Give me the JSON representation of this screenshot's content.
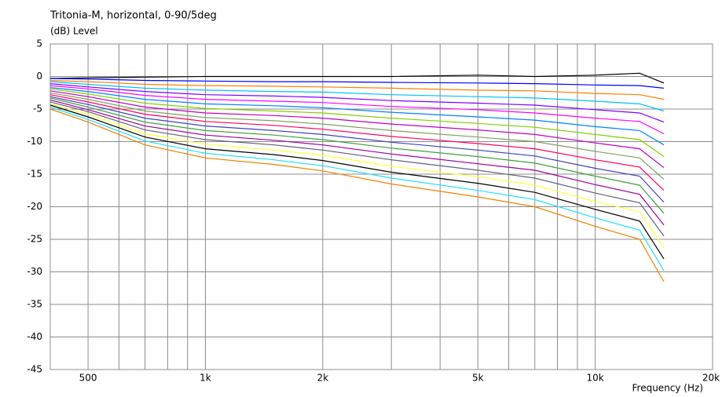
{
  "chart_data": {
    "type": "line",
    "title": "Tritonia-M, horizontal, 0-90/5deg",
    "y_label": "(dB)  Level",
    "x_label": "Frequency  (Hz)",
    "x": [
      400,
      500,
      700,
      1000,
      1500,
      2000,
      3000,
      5000,
      7000,
      10000,
      13000,
      15000
    ],
    "xlim": [
      400,
      20000
    ],
    "x_log": true,
    "xticks": [
      500,
      {
        "value": 1000,
        "label": "1k"
      },
      {
        "value": 2000,
        "label": "2k"
      },
      {
        "value": 5000,
        "label": "5k"
      },
      {
        "value": 10000,
        "label": "10k"
      },
      {
        "value": 20000,
        "label": "20k"
      }
    ],
    "xminor": [
      600,
      700,
      800,
      900,
      3000,
      4000,
      6000,
      7000,
      8000,
      9000
    ],
    "ylim": [
      -45,
      5
    ],
    "yticks": [
      5,
      0,
      -5,
      -10,
      -15,
      -20,
      -25,
      -30,
      -35,
      -40,
      -45
    ],
    "grid": true,
    "series": [
      {
        "color": "#000000",
        "values": [
          -0.3,
          -0.2,
          -0.1,
          0,
          0,
          0,
          0,
          0.2,
          0,
          0.2,
          0.5,
          -1
        ]
      },
      {
        "color": "#0000ff",
        "values": [
          -0.3,
          -0.4,
          -0.6,
          -0.7,
          -0.8,
          -0.8,
          -0.9,
          -1,
          -1.1,
          -1.3,
          -1.4,
          -1.8
        ]
      },
      {
        "color": "#ff8000",
        "values": [
          -0.6,
          -0.8,
          -1.2,
          -1.4,
          -1.5,
          -1.6,
          -1.8,
          -2.1,
          -2.2,
          -2.6,
          -2.8,
          -3.5
        ]
      },
      {
        "color": "#00c0ff",
        "values": [
          -0.8,
          -1.2,
          -1.8,
          -2.1,
          -2.3,
          -2.4,
          -2.8,
          -3.1,
          -3.3,
          -3.8,
          -4.2,
          -5.3
        ]
      },
      {
        "color": "#8000ff",
        "values": [
          -1.1,
          -1.6,
          -2.3,
          -2.8,
          -3,
          -3.2,
          -3.7,
          -4.1,
          -4.4,
          -5.1,
          -5.6,
          -7
        ]
      },
      {
        "color": "#ff00ff",
        "values": [
          -1.4,
          -1.9,
          -2.9,
          -3.5,
          -3.8,
          -4,
          -4.6,
          -5.1,
          -5.6,
          -6.4,
          -6.9,
          -8.8
        ]
      },
      {
        "color": "#0080ff",
        "values": [
          -1.7,
          -2.3,
          -3.5,
          -4.2,
          -4.5,
          -4.8,
          -5.5,
          -6.2,
          -6.7,
          -7.7,
          -8.3,
          -10.5
        ]
      },
      {
        "color": "#80d000",
        "values": [
          -1.9,
          -2.7,
          -4.1,
          -4.9,
          -5.3,
          -5.6,
          -6.4,
          -7.2,
          -7.8,
          -8.9,
          -9.7,
          -12.3
        ]
      },
      {
        "color": "#c000c0",
        "values": [
          -2.2,
          -3.1,
          -4.7,
          -5.6,
          -6,
          -6.4,
          -7.3,
          -8.2,
          -8.9,
          -10.2,
          -11.1,
          -14
        ]
      },
      {
        "color": "#80a060",
        "values": [
          -2.5,
          -3.5,
          -5.3,
          -6.3,
          -6.8,
          -7.3,
          -8.3,
          -9.3,
          -10,
          -11.5,
          -12.5,
          -15.8
        ]
      },
      {
        "color": "#ff0060",
        "values": [
          -2.8,
          -3.9,
          -5.8,
          -6.9,
          -7.5,
          -8.1,
          -9.2,
          -10.3,
          -11.1,
          -12.8,
          -13.9,
          -17.5
        ]
      },
      {
        "color": "#4040c0",
        "values": [
          -3.1,
          -4.3,
          -6.4,
          -7.6,
          -8.3,
          -8.9,
          -10.1,
          -11.3,
          -12.2,
          -14.1,
          -15.3,
          -19.3
        ]
      },
      {
        "color": "#40a040",
        "values": [
          -3.3,
          -4.7,
          -7,
          -8.3,
          -9,
          -9.7,
          -11,
          -12.3,
          -13.3,
          -15.3,
          -16.7,
          -21
        ]
      },
      {
        "color": "#a000a0",
        "values": [
          -3.6,
          -5.1,
          -7.6,
          -9,
          -9.8,
          -10.5,
          -11.9,
          -13.4,
          -14.4,
          -16.6,
          -18.1,
          -22.8
        ]
      },
      {
        "color": "#606080",
        "values": [
          -3.9,
          -5.4,
          -8.2,
          -9.7,
          -10.5,
          -11.3,
          -12.8,
          -14.4,
          -15.6,
          -17.9,
          -19.4,
          -24.5
        ]
      },
      {
        "color": "#ffff40",
        "values": [
          -4.2,
          -5.8,
          -8.8,
          -10.4,
          -11.3,
          -12.1,
          -13.8,
          -15.4,
          -16.7,
          -19.2,
          -20.8,
          -26.3
        ]
      },
      {
        "color": "#000000",
        "values": [
          -4.4,
          -6.2,
          -9.3,
          -11.1,
          -12,
          -12.9,
          -14.7,
          -16.4,
          -17.8,
          -20.4,
          -22.2,
          -28
        ]
      },
      {
        "color": "#20e0ff",
        "values": [
          -4.7,
          -6.6,
          -9.9,
          -11.8,
          -12.8,
          -13.7,
          -15.6,
          -17.5,
          -18.9,
          -21.7,
          -23.6,
          -29.8
        ]
      },
      {
        "color": "#f08000",
        "values": [
          -5,
          -7,
          -10.5,
          -12.5,
          -13.5,
          -14.5,
          -16.5,
          -18.5,
          -20,
          -23,
          -25,
          -31.5
        ]
      }
    ]
  }
}
